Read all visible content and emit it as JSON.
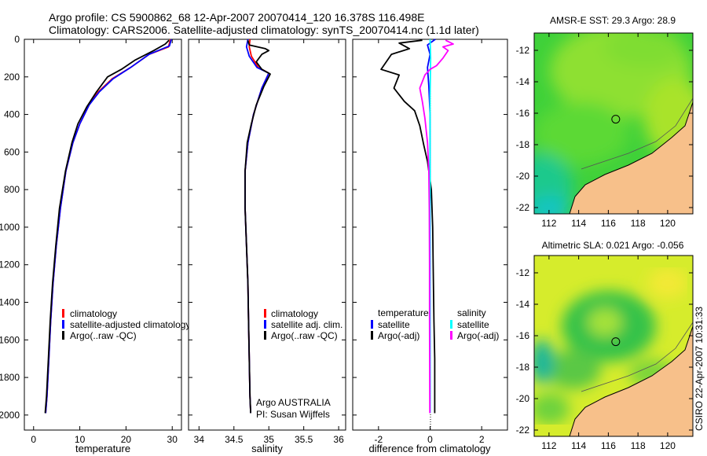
{
  "header": {
    "line1": "Argo profile: CS 5900862_68 12-Apr-2007 20070414_120 16.378S 116.498E",
    "line2": "Climatology: CARS2006. Satellite-adjusted climatology: synTS_20070414.nc (1.1d later)"
  },
  "footer": {
    "argo_program": "Argo AUSTRALIA",
    "pi": "PI: Susan Wijffels",
    "stamp": "CSIRO 22-Apr-2007 10:31:33"
  },
  "colors": {
    "climatology": "#ff0000",
    "satellite": "#0000ff",
    "argo": "#000000",
    "sal_satellite": "#00ffff",
    "sal_argo": "#ff00ff",
    "land": "#f7c08a"
  },
  "chart_data": [
    {
      "type": "line",
      "id": "temperature",
      "xlabel": "temperature",
      "ylabel": "",
      "xlim": [
        -2,
        32
      ],
      "ylim": [
        2080,
        0
      ],
      "xticks": [
        0,
        10,
        20,
        30
      ],
      "xtick_labels": [
        "0",
        "10",
        "20",
        "30"
      ],
      "yticks": [
        0,
        200,
        400,
        600,
        800,
        1000,
        1200,
        1400,
        1600,
        1800,
        2000
      ],
      "ytick_labels": [
        "0",
        "200",
        "400",
        "600",
        "800",
        "1000",
        "1200",
        "1400",
        "1600",
        "1800",
        "2000"
      ],
      "legend": [
        "climatology",
        "satellite-adjusted climatology",
        "Argo(..raw -QC)"
      ],
      "series": [
        {
          "name": "climatology",
          "color": "#ff0000",
          "points": [
            [
              29.6,
              0
            ],
            [
              29.2,
              40
            ],
            [
              25,
              80
            ],
            [
              21,
              150
            ],
            [
              17,
              210
            ],
            [
              14,
              280
            ],
            [
              12,
              350
            ],
            [
              10,
              450
            ],
            [
              8.5,
              550
            ],
            [
              7,
              700
            ],
            [
              5.8,
              900
            ],
            [
              4.9,
              1100
            ],
            [
              4.2,
              1300
            ],
            [
              3.7,
              1500
            ],
            [
              3.3,
              1700
            ],
            [
              2.9,
              1900
            ],
            [
              2.6,
              1990
            ]
          ]
        },
        {
          "name": "satellite-adjusted climatology",
          "color": "#0000ff",
          "points": [
            [
              29.8,
              0
            ],
            [
              29.4,
              35
            ],
            [
              25,
              80
            ],
            [
              21,
              150
            ],
            [
              17.2,
              210
            ],
            [
              14.2,
              280
            ],
            [
              12,
              350
            ],
            [
              10,
              450
            ],
            [
              8.5,
              550
            ],
            [
              7,
              700
            ],
            [
              5.8,
              900
            ],
            [
              4.9,
              1100
            ],
            [
              4.2,
              1300
            ],
            [
              3.7,
              1500
            ],
            [
              3.3,
              1700
            ],
            [
              2.9,
              1900
            ],
            [
              2.6,
              1990
            ]
          ]
        },
        {
          "name": "Argo(..raw -QC)",
          "color": "#000000",
          "points": [
            [
              29.3,
              5
            ],
            [
              28.5,
              25
            ],
            [
              26,
              60
            ],
            [
              22,
              110
            ],
            [
              19,
              160
            ],
            [
              16,
              200
            ],
            [
              13.6,
              280
            ],
            [
              11.5,
              360
            ],
            [
              9.6,
              450
            ],
            [
              8.3,
              550
            ],
            [
              6.9,
              700
            ],
            [
              5.6,
              900
            ],
            [
              4.8,
              1100
            ],
            [
              4.1,
              1300
            ],
            [
              3.6,
              1500
            ],
            [
              3.2,
              1700
            ],
            [
              2.8,
              1900
            ],
            [
              2.5,
              1990
            ]
          ]
        }
      ]
    },
    {
      "type": "line",
      "id": "salinity",
      "xlabel": "salinity",
      "xlim": [
        33.85,
        36.1
      ],
      "ylim": [
        2080,
        0
      ],
      "xticks": [
        34,
        34.5,
        35,
        35.5,
        36
      ],
      "xtick_labels": [
        "34",
        "34.5",
        "35",
        "35.5",
        "36"
      ],
      "legend": [
        "climatology",
        "satellite adj. clim.",
        "Argo(..raw -QC)"
      ],
      "series": [
        {
          "name": "climatology",
          "color": "#ff0000",
          "points": [
            [
              34.73,
              0
            ],
            [
              34.72,
              40
            ],
            [
              34.75,
              90
            ],
            [
              34.85,
              150
            ],
            [
              35.0,
              180
            ],
            [
              34.9,
              260
            ],
            [
              34.78,
              400
            ],
            [
              34.7,
              550
            ],
            [
              34.66,
              700
            ],
            [
              34.66,
              900
            ],
            [
              34.68,
              1100
            ],
            [
              34.7,
              1300
            ],
            [
              34.71,
              1500
            ],
            [
              34.72,
              1700
            ],
            [
              34.73,
              1900
            ],
            [
              34.74,
              1990
            ]
          ]
        },
        {
          "name": "satellite adj. clim.",
          "color": "#0000ff",
          "points": [
            [
              34.7,
              0
            ],
            [
              34.68,
              40
            ],
            [
              34.72,
              90
            ],
            [
              34.83,
              150
            ],
            [
              35.0,
              180
            ],
            [
              34.9,
              260
            ],
            [
              34.78,
              400
            ],
            [
              34.7,
              550
            ],
            [
              34.66,
              700
            ],
            [
              34.66,
              900
            ],
            [
              34.68,
              1100
            ],
            [
              34.7,
              1300
            ],
            [
              34.71,
              1500
            ],
            [
              34.72,
              1700
            ],
            [
              34.73,
              1900
            ],
            [
              34.74,
              1990
            ]
          ]
        },
        {
          "name": "Argo(..raw -QC)",
          "color": "#000000",
          "points": [
            [
              34.7,
              5
            ],
            [
              34.72,
              30
            ],
            [
              34.95,
              50
            ],
            [
              35.0,
              60
            ],
            [
              34.9,
              80
            ],
            [
              34.82,
              120
            ],
            [
              34.9,
              160
            ],
            [
              35.02,
              185
            ],
            [
              34.93,
              250
            ],
            [
              34.82,
              350
            ],
            [
              34.75,
              450
            ],
            [
              34.69,
              550
            ],
            [
              34.66,
              700
            ],
            [
              34.66,
              900
            ],
            [
              34.68,
              1100
            ],
            [
              34.7,
              1300
            ],
            [
              34.71,
              1500
            ],
            [
              34.72,
              1700
            ],
            [
              34.73,
              1900
            ],
            [
              34.74,
              1990
            ]
          ]
        }
      ]
    },
    {
      "type": "line",
      "id": "difference",
      "xlabel": "difference from climatology",
      "xlim": [
        -3,
        3
      ],
      "ylim": [
        2080,
        0
      ],
      "xticks": [
        -2,
        0,
        2
      ],
      "xtick_labels": [
        "-2",
        "0",
        "2"
      ],
      "legend_temperature_title": "temperature",
      "legend_temperature": [
        "satellite",
        "Argo(-adj)"
      ],
      "legend_salinity_title": "salinity",
      "legend_salinity": [
        "satellite",
        "Argo(-adj)"
      ],
      "series": [
        {
          "name": "temperature satellite",
          "color": "#0000ff",
          "points": [
            [
              0.2,
              0
            ],
            [
              -0.1,
              30
            ],
            [
              0,
              80
            ],
            [
              -0.1,
              150
            ],
            [
              -0.05,
              250
            ],
            [
              0,
              400
            ],
            [
              0,
              700
            ],
            [
              0,
              1000
            ],
            [
              0,
              1400
            ],
            [
              0,
              1990
            ]
          ]
        },
        {
          "name": "temperature Argo(-adj)",
          "color": "#000000",
          "points": [
            [
              -0.3,
              5
            ],
            [
              -1.2,
              20
            ],
            [
              -0.8,
              50
            ],
            [
              -1.5,
              80
            ],
            [
              -1.9,
              160
            ],
            [
              -1.2,
              190
            ],
            [
              -1.4,
              260
            ],
            [
              -1.0,
              330
            ],
            [
              -0.6,
              380
            ],
            [
              -0.4,
              460
            ],
            [
              -0.25,
              560
            ],
            [
              -0.1,
              650
            ],
            [
              0.05,
              800
            ],
            [
              0.1,
              1000
            ],
            [
              0.12,
              1200
            ],
            [
              0.15,
              1500
            ],
            [
              0.18,
              1700
            ],
            [
              0.18,
              1990
            ]
          ]
        },
        {
          "name": "salinity satellite",
          "color": "#00ffff",
          "points": [
            [
              0,
              0
            ],
            [
              0.02,
              100
            ],
            [
              0,
              300
            ],
            [
              0,
              600
            ],
            [
              0,
              1000
            ],
            [
              0,
              1500
            ],
            [
              0,
              1990
            ]
          ]
        },
        {
          "name": "salinity Argo(-adj)",
          "color": "#ff00ff",
          "points": [
            [
              0.6,
              5
            ],
            [
              0.9,
              25
            ],
            [
              0.5,
              40
            ],
            [
              0.7,
              60
            ],
            [
              0.5,
              100
            ],
            [
              0.25,
              140
            ],
            [
              0,
              160
            ],
            [
              -0.2,
              190
            ],
            [
              -0.4,
              260
            ],
            [
              -0.3,
              330
            ],
            [
              -0.2,
              420
            ],
            [
              -0.1,
              550
            ],
            [
              -0.05,
              700
            ],
            [
              -0.03,
              900
            ],
            [
              -0.02,
              1200
            ],
            [
              -0.02,
              1500
            ],
            [
              -0.01,
              1990
            ]
          ]
        }
      ]
    },
    {
      "type": "heatmap",
      "id": "sst",
      "title": "AMSR-E SST: 29.3 Argo: 28.9",
      "xlim": [
        111,
        121.7
      ],
      "ylim": [
        -22.4,
        -10.9
      ],
      "xticks": [
        112,
        114,
        116,
        118,
        120
      ],
      "xtick_labels": [
        "112",
        "114",
        "116",
        "118",
        "120"
      ],
      "yticks": [
        -12,
        -14,
        -16,
        -18,
        -20,
        -22
      ],
      "ytick_labels": [
        "-12",
        "-14",
        "-16",
        "-18",
        "-20",
        "-22"
      ],
      "argo_marker": [
        116.5,
        -16.38
      ]
    },
    {
      "type": "heatmap",
      "id": "sla",
      "title": "Altimetric SLA: 0.021 Argo: -0.056",
      "xlim": [
        111,
        121.7
      ],
      "ylim": [
        -22.4,
        -10.9
      ],
      "xticks": [
        112,
        114,
        116,
        118,
        120
      ],
      "xtick_labels": [
        "112",
        "114",
        "116",
        "118",
        "120"
      ],
      "yticks": [
        -12,
        -14,
        -16,
        -18,
        -20,
        -22
      ],
      "ytick_labels": [
        "-12",
        "-14",
        "-16",
        "-18",
        "-20",
        "-22"
      ],
      "argo_marker": [
        116.5,
        -16.38
      ]
    }
  ]
}
